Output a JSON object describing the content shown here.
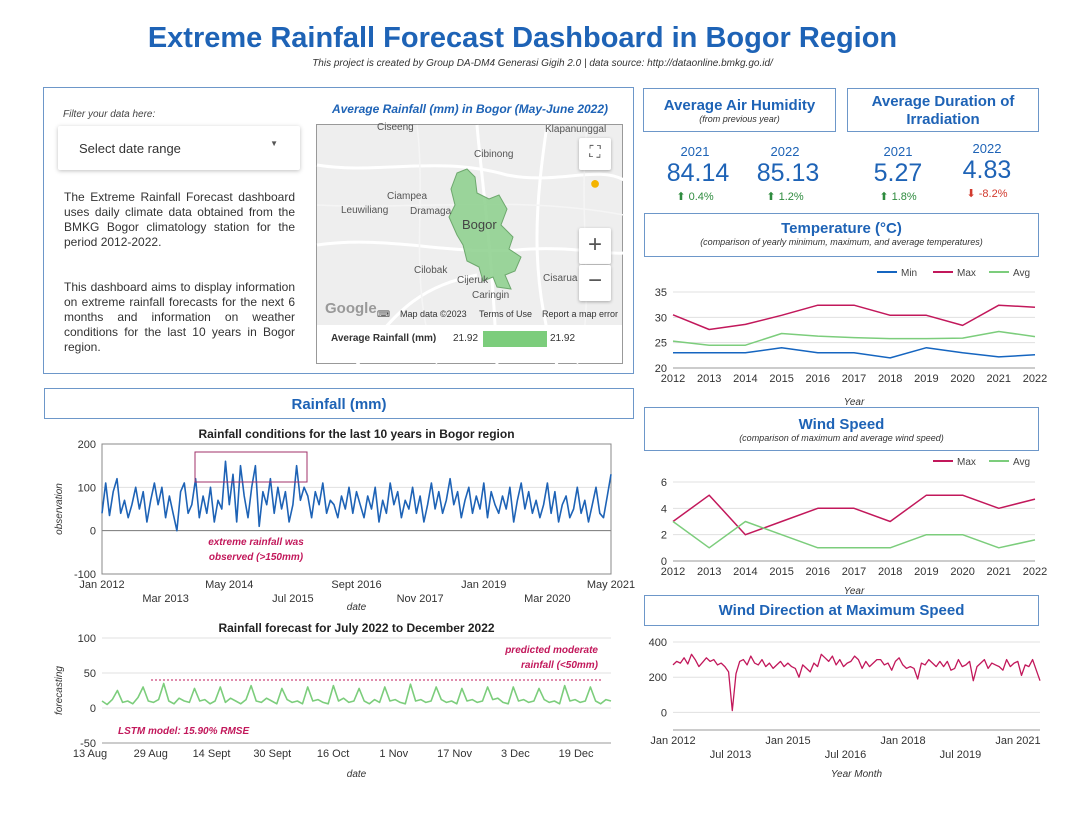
{
  "header": {
    "title": "Extreme Rainfall Forecast Dashboard in Bogor Region",
    "subtitle": "This project is created by Group DA-DM4 Generasi Gigih 2.0 | data source: http://dataonline.bmkg.go.id/"
  },
  "filter": {
    "label": "Filter your data here:",
    "dropdown": "Select date range"
  },
  "description": {
    "p1": "The Extreme Rainfall Forecast dashboard uses daily climate data obtained from the BMKG Bogor climatology station for the period 2012-2022.",
    "p2": "This dashboard aims to display information on extreme rainfall forecasts for the next 6 months and information on weather conditions for the last 10 years in Bogor region."
  },
  "map": {
    "title": "Average Rainfall (mm) in Bogor (May-June 2022)",
    "places": [
      "Ciseeng",
      "Klapanunggal",
      "Cibinong",
      "Ciampea",
      "Leuwiliang",
      "Dramaga",
      "Bogor",
      "Cilobak",
      "Cijeruk",
      "Cisarua",
      "Caringin"
    ],
    "credits": [
      "Map data ©2023",
      "Terms of Use",
      "Report a map error"
    ],
    "google": "Google",
    "legend_label": "Average Rainfall (mm)",
    "legend_min": "21.92",
    "legend_max": "21.92",
    "fill_color": "#8bcf8b"
  },
  "humidity": {
    "title": "Average Air Humidity",
    "subtitle": "(from previous year)",
    "y1": "2021",
    "v1": "84.14",
    "c1": "0.4%",
    "y2": "2022",
    "v2": "85.13",
    "c2": "1.2%"
  },
  "irradiation": {
    "title": "Average Duration of Irradiation",
    "y1": "2021",
    "v1": "5.27",
    "c1": "1.8%",
    "y2": "2022",
    "v2": "4.83",
    "c2": "-8.2%"
  },
  "temperature": {
    "title": "Temperature (°C)",
    "subtitle": "(comparison of yearly minimum, maximum, and average temperatures)"
  },
  "wind_speed": {
    "title": "Wind Speed",
    "subtitle": "(comparison of maximum and average wind speed)"
  },
  "wind_dir": {
    "title": "Wind Direction at Maximum Speed"
  },
  "rainfall": {
    "title": "Rainfall (mm)",
    "annotation1": "extreme rainfall was",
    "annotation2": "observed (>150mm)",
    "forecast_annotation1": "predicted moderate",
    "forecast_annotation2": "rainfall (<50mm)",
    "forecast_model": "LSTM model: 15.90% RMSE"
  },
  "colors": {
    "accent": "#1e63b6",
    "max": "#c2185b",
    "min": "#1565c0",
    "avg": "#7ccd7c"
  },
  "chart_data": [
    {
      "id": "temp",
      "type": "line",
      "xlabel": "Year",
      "x": [
        "2012",
        "2013",
        "2014",
        "2015",
        "2016",
        "2017",
        "2018",
        "2019",
        "2020",
        "2021",
        "2022"
      ],
      "ylim": [
        20,
        35
      ],
      "yticks": [
        20,
        25,
        30,
        35
      ],
      "legend": "top-right",
      "series": [
        {
          "name": "Min",
          "color": "#1565c0",
          "values": [
            23,
            23,
            23,
            24,
            23,
            23,
            22,
            24,
            23,
            22.2,
            22.6
          ]
        },
        {
          "name": "Max",
          "color": "#c2185b",
          "values": [
            30.5,
            27.6,
            28.6,
            30.4,
            32.4,
            32.4,
            30.4,
            30.4,
            28.4,
            32.4,
            32
          ]
        },
        {
          "name": "Avg",
          "color": "#7ccd7c",
          "values": [
            25.3,
            24.5,
            24.5,
            26.8,
            26.3,
            26,
            25.8,
            25.8,
            25.9,
            27.2,
            26.2
          ]
        }
      ]
    },
    {
      "id": "wind",
      "type": "line",
      "xlabel": "Year",
      "x": [
        "2012",
        "2013",
        "2014",
        "2015",
        "2016",
        "2017",
        "2018",
        "2019",
        "2020",
        "2021",
        "2022"
      ],
      "ylim": [
        0,
        6
      ],
      "yticks": [
        0,
        2,
        4,
        6
      ],
      "legend": "top-right",
      "series": [
        {
          "name": "Max",
          "color": "#c2185b",
          "values": [
            3,
            5,
            2,
            3,
            4,
            4,
            3,
            5,
            5,
            4,
            4.7
          ]
        },
        {
          "name": "Avg",
          "color": "#7ccd7c",
          "values": [
            3,
            1,
            3,
            2,
            1,
            1,
            1,
            2,
            2,
            1,
            1.6
          ]
        }
      ]
    },
    {
      "id": "winddir",
      "type": "line",
      "xlabel": "Year Month",
      "ylim": [
        -100,
        400
      ],
      "yticks": [
        0,
        200,
        400
      ],
      "xtick_labels": [
        "Jan 2012",
        "Jul 2013",
        "Jan 2015",
        "Jul 2016",
        "Jan 2018",
        "Jul 2019",
        "Jan 2021"
      ],
      "series": [
        {
          "name": "",
          "color": "#c2185b",
          "values": [
            270,
            290,
            280,
            310,
            275,
            330,
            300,
            260,
            285,
            310,
            290,
            300,
            270,
            280,
            260,
            230,
            10,
            220,
            290,
            300,
            270,
            320,
            280,
            270,
            300,
            260,
            280,
            250,
            270,
            290,
            260,
            280,
            260,
            250,
            200,
            270,
            250,
            230,
            280,
            260,
            330,
            310,
            290,
            320,
            270,
            300,
            260,
            280,
            290,
            320,
            300,
            250,
            290,
            260,
            280,
            300,
            300,
            270,
            280,
            240,
            290,
            310,
            270,
            250,
            260,
            250,
            190,
            280,
            270,
            300,
            280,
            260,
            290,
            260,
            290,
            240,
            250,
            300,
            260,
            270,
            290,
            180,
            260,
            280,
            300,
            250,
            280,
            270,
            260,
            240,
            300,
            260,
            280,
            290,
            210,
            270,
            260,
            300,
            240,
            180
          ]
        }
      ]
    },
    {
      "id": "rainfall",
      "type": "line",
      "title": "Rainfall conditions for the last 10 years in Bogor region",
      "xlabel": "date",
      "ylabel": "observation",
      "ylim": [
        -100,
        200
      ],
      "yticks": [
        -100,
        0,
        100,
        200
      ],
      "xtick_labels": [
        "Jan 2012",
        "Mar 2013",
        "May 2014",
        "Jul 2015",
        "Sept 2016",
        "Nov 2017",
        "Jan 2019",
        "Mar 2020",
        "May 2021"
      ],
      "series": [
        {
          "name": "",
          "color": "#1e63b6",
          "values": [
            40,
            110,
            35,
            90,
            120,
            40,
            70,
            30,
            60,
            100,
            50,
            90,
            20,
            70,
            110,
            60,
            100,
            30,
            80,
            40,
            0,
            90,
            110,
            40,
            60,
            120,
            30,
            80,
            40,
            100,
            20,
            70,
            50,
            160,
            60,
            130,
            20,
            150,
            80,
            30,
            100,
            150,
            10,
            90,
            60,
            120,
            40,
            100,
            50,
            90,
            20,
            60,
            150,
            70,
            100,
            80,
            30,
            90,
            60,
            110,
            40,
            70,
            60,
            30,
            80,
            50,
            100,
            40,
            90,
            60,
            30,
            80,
            50,
            100,
            20,
            70,
            40,
            110,
            60,
            90,
            30,
            70,
            50,
            100,
            40,
            80,
            20,
            60,
            110,
            50,
            90,
            40,
            70,
            120,
            60,
            90,
            30,
            70,
            100,
            40,
            80,
            50,
            110,
            30,
            90,
            60,
            40,
            80,
            50,
            100,
            20,
            70,
            110,
            50,
            90,
            40,
            70,
            30,
            60,
            110,
            40,
            90,
            20,
            60,
            80,
            30,
            50,
            100,
            40,
            70,
            20,
            60,
            100,
            40,
            30,
            80,
            130
          ]
        }
      ]
    },
    {
      "id": "forecast",
      "type": "line",
      "title": "Rainfall forecast for July 2022 to December 2022",
      "xlabel": "date",
      "ylabel": "forecasting",
      "ylim": [
        -50,
        100
      ],
      "yticks": [
        -50,
        0,
        50,
        100
      ],
      "threshold": 40,
      "xtick_labels": [
        "13 Aug",
        "29 Aug",
        "14 Sept",
        "30 Sept",
        "16 Oct",
        "1 Nov",
        "17 Nov",
        "3 Dec",
        "19 Dec"
      ],
      "series": [
        {
          "name": "",
          "color": "#7ccd7c",
          "values": [
            10,
            5,
            12,
            25,
            8,
            10,
            6,
            15,
            30,
            10,
            8,
            12,
            35,
            10,
            6,
            14,
            10,
            8,
            28,
            10,
            12,
            6,
            10,
            30,
            8,
            14,
            10,
            6,
            12,
            32,
            10,
            8,
            14,
            10,
            6,
            28,
            12,
            8,
            10,
            6,
            30,
            10,
            12,
            8,
            6,
            32,
            10,
            14,
            8,
            10,
            28,
            10,
            6,
            12,
            8,
            30,
            10,
            12,
            8,
            6,
            34,
            10,
            12,
            8,
            10,
            30,
            12,
            8,
            10,
            6,
            28,
            10,
            12,
            8,
            10,
            30,
            12,
            14,
            8,
            6,
            30,
            10,
            12,
            8,
            10,
            28,
            12,
            8,
            10,
            6,
            32,
            10,
            12,
            8,
            10,
            30,
            10,
            6,
            12,
            10
          ]
        }
      ]
    }
  ]
}
